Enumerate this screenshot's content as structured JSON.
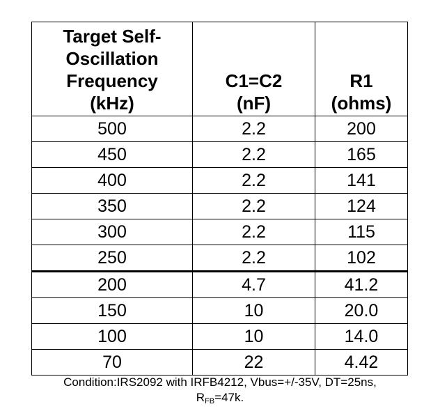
{
  "table": {
    "headers": [
      {
        "lines": [
          "Target Self-",
          "Oscillation",
          "Frequency",
          "(kHz)"
        ]
      },
      {
        "lines": [
          "C1=C2",
          "(nF)"
        ]
      },
      {
        "lines": [
          "R1",
          "(ohms)"
        ]
      }
    ],
    "rows": [
      [
        "500",
        "2.2",
        "200"
      ],
      [
        "450",
        "2.2",
        "165"
      ],
      [
        "400",
        "2.2",
        "141"
      ],
      [
        "350",
        "2.2",
        "124"
      ],
      [
        "300",
        "2.2",
        "115"
      ],
      [
        "250",
        "2.2",
        "102"
      ],
      [
        "200",
        "4.7",
        "41.2"
      ],
      [
        "150",
        "10",
        "20.0"
      ],
      [
        "100",
        "10",
        "14.0"
      ],
      [
        "70",
        "22",
        "4.42"
      ]
    ]
  },
  "caption": {
    "line1": "Condition:IRS2092 with IRFB4212, Vbus=+/-35V, DT=25ns,",
    "rfb_main": "R",
    "rfb_sub": "FB",
    "rfb_value": "=47k."
  }
}
